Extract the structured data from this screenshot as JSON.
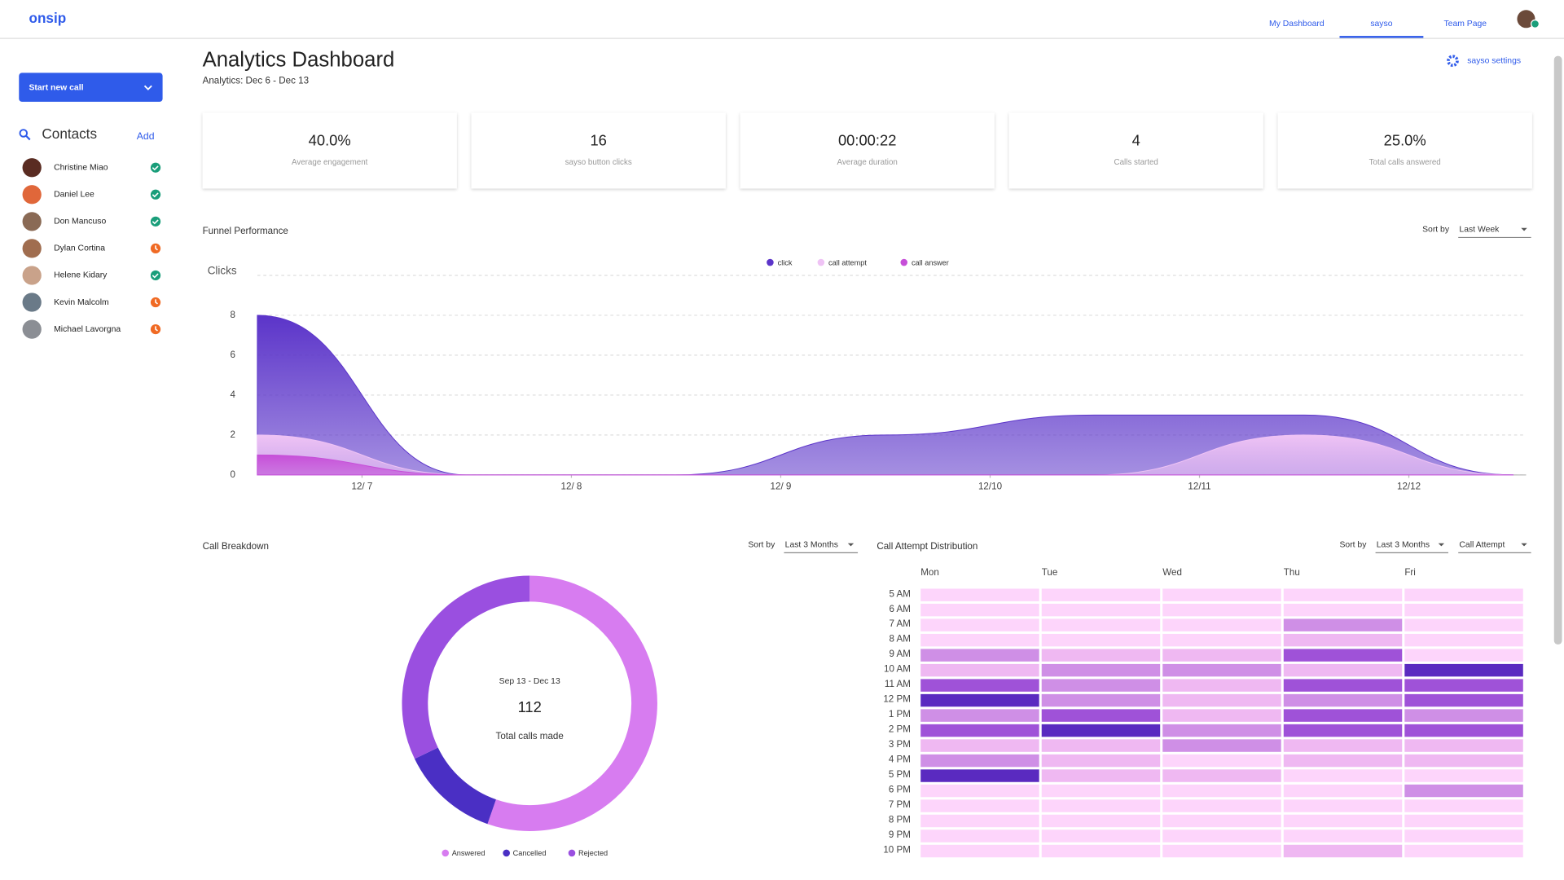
{
  "nav": {
    "logo": "onsip",
    "links": [
      "My Dashboard",
      "sayso",
      "Team Page"
    ],
    "active": 1
  },
  "sidebar": {
    "button": "Start new call",
    "contacts_title": "Contacts",
    "add": "Add",
    "contacts": [
      {
        "name": "Christine Miao",
        "status": "available"
      },
      {
        "name": "Daniel Lee",
        "status": "available"
      },
      {
        "name": "Don Mancuso",
        "status": "available"
      },
      {
        "name": "Dylan Cortina",
        "status": "away"
      },
      {
        "name": "Helene Kidary",
        "status": "available"
      },
      {
        "name": "Kevin Malcolm",
        "status": "away"
      },
      {
        "name": "Michael Lavorgna",
        "status": "away"
      }
    ]
  },
  "header": {
    "title": "Analytics Dashboard",
    "subtitle": "Analytics: Dec 6 - Dec 13",
    "settings": "sayso settings"
  },
  "stats": [
    {
      "value": "40.0%",
      "label": "Average engagement"
    },
    {
      "value": "16",
      "label": "sayso button clicks"
    },
    {
      "value": "00:00:22",
      "label": "Average duration"
    },
    {
      "value": "4",
      "label": "Calls started"
    },
    {
      "value": "25.0%",
      "label": "Total calls answered"
    }
  ],
  "chart_data": [
    {
      "type": "area",
      "title": "Funnel Performance",
      "sort_label": "Sort by",
      "sort_value": "Last Week",
      "y_label": "Clicks",
      "x": [
        0,
        1,
        2,
        3,
        4,
        5,
        6
      ],
      "xlim": [
        0,
        6.06
      ],
      "xticks": [
        {
          "value": 0.5,
          "label": "12/ 7"
        },
        {
          "value": 1.5,
          "label": "12/ 8"
        },
        {
          "value": 2.5,
          "label": "12/ 9"
        },
        {
          "value": 3.5,
          "label": "12/10"
        },
        {
          "value": 4.5,
          "label": "12/11"
        },
        {
          "value": 5.5,
          "label": "12/12"
        }
      ],
      "ylim": [
        0,
        10
      ],
      "yticks": [
        0,
        2,
        4,
        6,
        8
      ],
      "grid": true,
      "series": [
        {
          "name": "click",
          "color": "#5b34c9",
          "values": [
            8,
            0,
            0,
            2,
            3,
            3,
            0
          ]
        },
        {
          "name": "call attempt",
          "color": "#efc3f5",
          "values": [
            2,
            0,
            0,
            0,
            0,
            2,
            0
          ]
        },
        {
          "name": "call answer",
          "color": "#c64fd8",
          "values": [
            1,
            0,
            0,
            0,
            0,
            0,
            0
          ]
        }
      ]
    },
    {
      "type": "pie",
      "title": "Call Breakdown",
      "sort_label": "Sort by",
      "sort_value": "Last 3 Months",
      "center_caption": "Sep 13 - Dec 13",
      "total": 112,
      "total_label": "Total calls made",
      "categories": [
        "Answered",
        "Cancelled",
        "Rejected"
      ],
      "values": [
        62,
        14,
        36
      ],
      "colors": [
        "#d77cf0",
        "#4a2fc4",
        "#9a4fe0"
      ]
    },
    {
      "type": "heatmap",
      "title": "Call Attempt Distribution",
      "sort_label": "Sort by",
      "sort_values": [
        "Last 3 Months",
        "Call Attempt"
      ],
      "columns": [
        "Mon",
        "Tue",
        "Wed",
        "Thu",
        "Fri"
      ],
      "rows": [
        "5 AM",
        "6 AM",
        "7 AM",
        "8 AM",
        "9 AM",
        "10 AM",
        "11 AM",
        "12 PM",
        "1 PM",
        "2 PM",
        "3 PM",
        "4 PM",
        "5 PM",
        "6 PM",
        "7 PM",
        "8 PM",
        "9 PM",
        "10 PM"
      ],
      "values": [
        [
          0,
          0,
          0,
          0,
          0
        ],
        [
          0,
          0,
          0,
          0,
          0
        ],
        [
          0,
          0,
          0,
          2,
          0
        ],
        [
          0,
          0,
          0,
          1,
          0
        ],
        [
          2,
          1,
          1,
          3,
          0
        ],
        [
          1,
          2,
          2,
          1,
          4
        ],
        [
          3,
          2,
          1,
          3,
          3
        ],
        [
          4,
          2,
          1,
          2,
          3
        ],
        [
          2,
          3,
          1,
          3,
          2
        ],
        [
          3,
          4,
          2,
          3,
          3
        ],
        [
          1,
          1,
          2,
          1,
          1
        ],
        [
          2,
          1,
          0,
          1,
          1
        ],
        [
          4,
          1,
          1,
          0,
          0
        ],
        [
          0,
          0,
          0,
          0,
          2
        ],
        [
          0,
          0,
          0,
          0,
          0
        ],
        [
          0,
          0,
          0,
          0,
          0
        ],
        [
          0,
          0,
          0,
          0,
          0
        ],
        [
          0,
          0,
          0,
          1,
          0
        ]
      ],
      "colors": [
        "#fdd5fb",
        "#efb8f2",
        "#cf8fe6",
        "#9f52d8",
        "#5a2ac0"
      ]
    }
  ]
}
